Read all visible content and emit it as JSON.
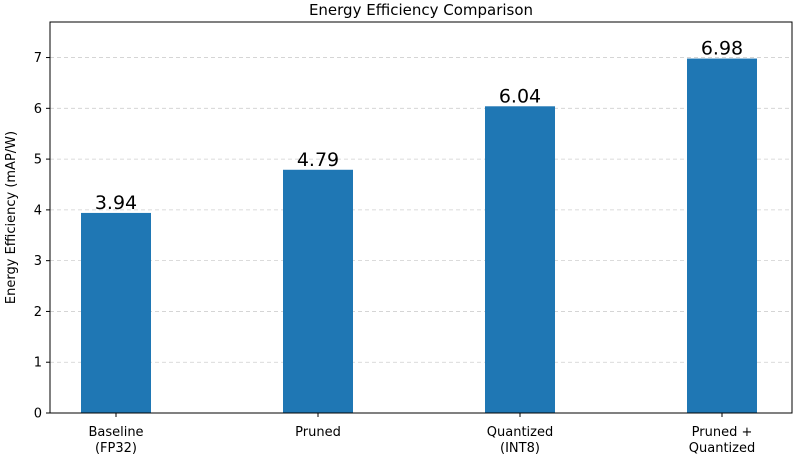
{
  "chart_data": {
    "type": "bar",
    "title": "Energy Efficiency Comparison",
    "xlabel": "",
    "ylabel": "Energy Efficiency (mAP/W)",
    "categories": [
      [
        "Baseline",
        "(FP32)"
      ],
      [
        "Pruned"
      ],
      [
        "Quantized",
        "(INT8)"
      ],
      [
        "Pruned +",
        "Quantized"
      ]
    ],
    "values": [
      3.94,
      4.79,
      6.04,
      6.98
    ],
    "data_labels": [
      "3.94",
      "4.79",
      "6.04",
      "6.98"
    ],
    "ylim": [
      0,
      7.7
    ],
    "yticks": [
      0,
      1,
      2,
      3,
      4,
      5,
      6,
      7
    ],
    "grid": true,
    "grid_axis": "y",
    "bar_color": "#1f77b4"
  }
}
